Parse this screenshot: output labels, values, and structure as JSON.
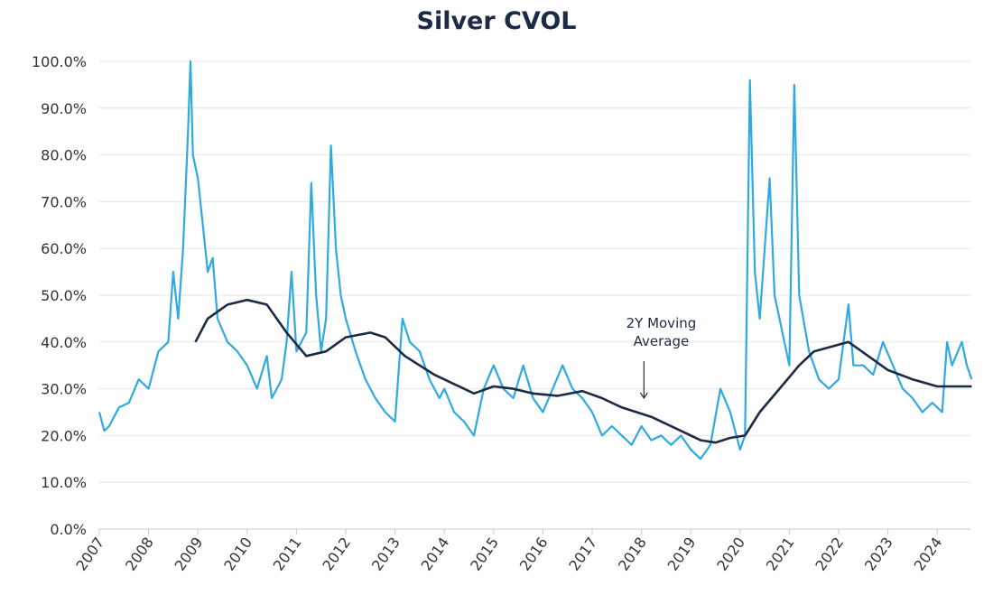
{
  "chart_data": {
    "type": "line",
    "title": "Silver CVOL",
    "xlabel": "",
    "ylabel": "",
    "xlim": [
      2007,
      2024.7
    ],
    "ylim": [
      0,
      100
    ],
    "grid": "horizontal",
    "x_ticks": [
      "2007",
      "2008",
      "2009",
      "2010",
      "2011",
      "2012",
      "2013",
      "2014",
      "2015",
      "2016",
      "2017",
      "2018",
      "2019",
      "2020",
      "2021",
      "2022",
      "2023",
      "2024"
    ],
    "y_ticks": [
      "0.0%",
      "10.0%",
      "20.0%",
      "30.0%",
      "40.0%",
      "50.0%",
      "60.0%",
      "70.0%",
      "80.0%",
      "90.0%",
      "100.0%"
    ],
    "colors": {
      "cvol": "#2eaae1",
      "moving_average": "#1c2b45"
    },
    "series": [
      {
        "key": "cvol",
        "x": [
          2007.0,
          2007.1,
          2007.2,
          2007.4,
          2007.6,
          2007.8,
          2008.0,
          2008.2,
          2008.4,
          2008.5,
          2008.6,
          2008.7,
          2008.8,
          2008.85,
          2008.9,
          2009.0,
          2009.1,
          2009.2,
          2009.3,
          2009.4,
          2009.6,
          2009.8,
          2010.0,
          2010.2,
          2010.4,
          2010.5,
          2010.7,
          2010.8,
          2010.9,
          2011.0,
          2011.2,
          2011.3,
          2011.4,
          2011.5,
          2011.6,
          2011.7,
          2011.8,
          2011.9,
          2012.0,
          2012.2,
          2012.4,
          2012.6,
          2012.8,
          2013.0,
          2013.15,
          2013.3,
          2013.5,
          2013.7,
          2013.9,
          2014.0,
          2014.2,
          2014.4,
          2014.6,
          2014.8,
          2015.0,
          2015.2,
          2015.4,
          2015.6,
          2015.8,
          2016.0,
          2016.2,
          2016.4,
          2016.6,
          2016.8,
          2017.0,
          2017.2,
          2017.4,
          2017.6,
          2017.8,
          2018.0,
          2018.2,
          2018.4,
          2018.6,
          2018.8,
          2019.0,
          2019.2,
          2019.4,
          2019.6,
          2019.8,
          2020.0,
          2020.1,
          2020.2,
          2020.3,
          2020.4,
          2020.6,
          2020.7,
          2020.8,
          2020.9,
          2021.0,
          2021.1,
          2021.2,
          2021.4,
          2021.6,
          2021.8,
          2022.0,
          2022.2,
          2022.3,
          2022.5,
          2022.7,
          2022.9,
          2023.1,
          2023.3,
          2023.5,
          2023.7,
          2023.9,
          2024.1,
          2024.2,
          2024.3,
          2024.5,
          2024.6,
          2024.7
        ],
        "values": [
          25,
          21,
          22,
          26,
          27,
          32,
          30,
          38,
          40,
          55,
          45,
          60,
          85,
          100,
          80,
          75,
          65,
          55,
          58,
          45,
          40,
          38,
          35,
          30,
          37,
          28,
          32,
          40,
          55,
          38,
          42,
          74,
          50,
          38,
          45,
          82,
          60,
          50,
          45,
          38,
          32,
          28,
          25,
          23,
          45,
          40,
          38,
          32,
          28,
          30,
          25,
          23,
          20,
          30,
          35,
          30,
          28,
          35,
          28,
          25,
          30,
          35,
          30,
          28,
          25,
          20,
          22,
          20,
          18,
          22,
          19,
          20,
          18,
          20,
          17,
          15,
          18,
          30,
          25,
          17,
          20,
          96,
          55,
          45,
          75,
          50,
          45,
          40,
          35,
          95,
          50,
          38,
          32,
          30,
          32,
          48,
          35,
          35,
          33,
          40,
          35,
          30,
          28,
          25,
          27,
          25,
          40,
          35,
          40,
          35,
          32
        ]
      },
      {
        "key": "moving_average",
        "name": "2Y Moving Average",
        "x": [
          2008.95,
          2009.2,
          2009.6,
          2010.0,
          2010.4,
          2010.8,
          2011.2,
          2011.6,
          2012.0,
          2012.5,
          2012.8,
          2013.2,
          2013.8,
          2014.2,
          2014.6,
          2015.0,
          2015.4,
          2015.8,
          2016.3,
          2016.8,
          2017.2,
          2017.6,
          2018.2,
          2018.8,
          2019.2,
          2019.5,
          2019.8,
          2020.1,
          2020.4,
          2020.8,
          2021.2,
          2021.5,
          2022.2,
          2022.6,
          2023.0,
          2023.5,
          2024.0,
          2024.5,
          2024.7
        ],
        "values": [
          40,
          45,
          48,
          49,
          48,
          42,
          37,
          38,
          41,
          42,
          41,
          37,
          33,
          31,
          29,
          30.5,
          30,
          29,
          28.5,
          29.5,
          28,
          26,
          24,
          21,
          19,
          18.5,
          19.5,
          20,
          25,
          30,
          35,
          38,
          40,
          37,
          34,
          32,
          30.5,
          30.5,
          30.5
        ]
      }
    ],
    "annotations": [
      {
        "text_lines": [
          "2Y Moving",
          "Average"
        ],
        "x": 2018.4,
        "arrow_to": [
          2018.05,
          28
        ]
      }
    ]
  }
}
